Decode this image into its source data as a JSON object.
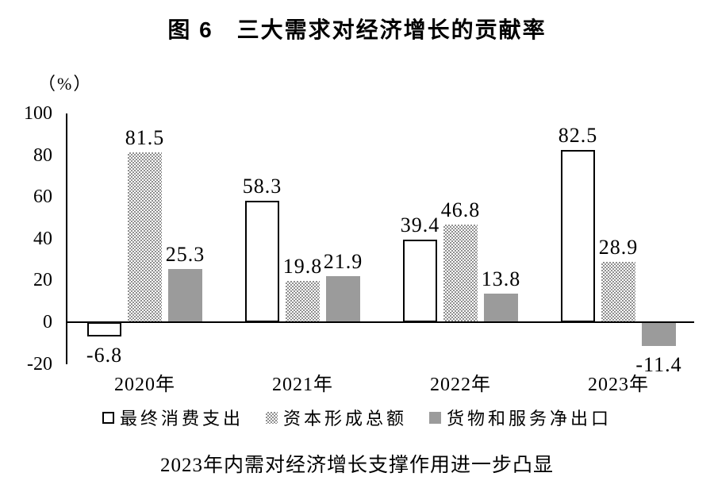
{
  "header": {
    "title": "图 6　三大需求对经济增长的贡献率"
  },
  "y_axis": {
    "unit_label": "（%）"
  },
  "footer": {
    "caption": "2023年内需对经济增长支撑作用进一步凸显"
  },
  "colors": {
    "bar_gray": "#9b9b9b",
    "pattern_dot_gray": "#8f8f8f",
    "axis_line": "#000000"
  },
  "chart_data": {
    "type": "bar",
    "title": "图 6　三大需求对经济增长的贡献率",
    "categories": [
      "2020年",
      "2021年",
      "2022年",
      "2023年"
    ],
    "series": [
      {
        "name": "最终消费支出",
        "pattern": "hollow",
        "values": [
          -6.8,
          58.3,
          39.4,
          82.5
        ]
      },
      {
        "name": "资本形成总额",
        "pattern": "dots",
        "values": [
          81.5,
          19.8,
          46.8,
          28.9
        ]
      },
      {
        "name": "货物和服务净出口",
        "pattern": "solid",
        "values": [
          25.3,
          21.9,
          13.8,
          -11.4
        ]
      }
    ],
    "xlabel": "",
    "ylabel": "（%）",
    "ylim": [
      -20,
      100
    ],
    "yticks": [
      100,
      80,
      60,
      40,
      20,
      0,
      -20
    ],
    "grid": false,
    "legend_position": "bottom",
    "data_labels": true,
    "caption": "2023年内需对经济增长支撑作用进一步凸显"
  }
}
